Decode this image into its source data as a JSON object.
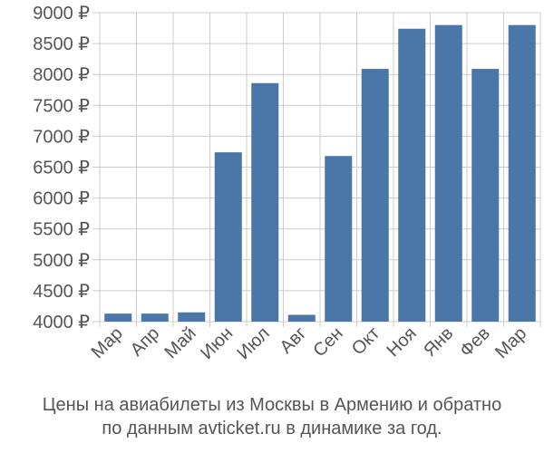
{
  "chart_data": {
    "type": "bar",
    "categories": [
      "Мар",
      "Апр",
      "Май",
      "Июн",
      "Июл",
      "Авг",
      "Сен",
      "Окт",
      "Ноя",
      "Янв",
      "Фев",
      "Мар"
    ],
    "values": [
      4130,
      4130,
      4150,
      6740,
      7860,
      4110,
      6680,
      8090,
      8740,
      8800,
      8090,
      8800
    ],
    "ylim": [
      4000,
      9000
    ],
    "yticks": [
      4000,
      4500,
      5000,
      5500,
      6000,
      6500,
      7000,
      7500,
      8000,
      8500,
      9000
    ],
    "ytick_suffix": " ₽",
    "grid": true,
    "bar_color": "#4a76a8",
    "grid_color": "#cccccc"
  },
  "caption": {
    "line1": "Цены на авиабилеты из Москвы в Армению и обратно",
    "line2": "по данным avticket.ru в динамике за год."
  }
}
